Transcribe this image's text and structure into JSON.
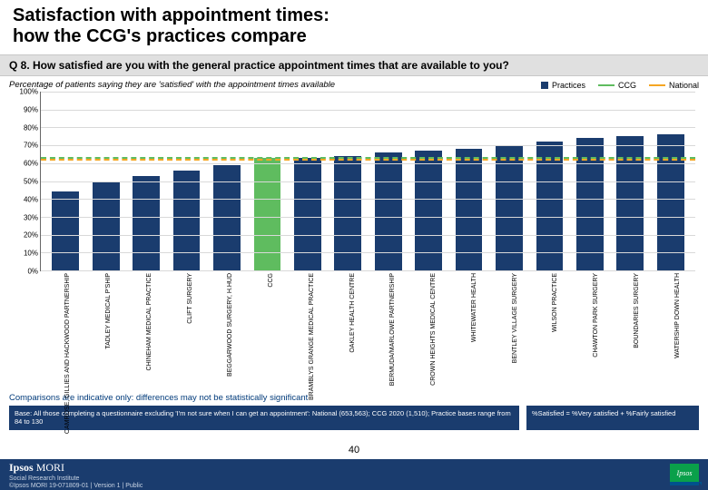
{
  "title_line1": "Satisfaction with appointment times:",
  "title_line2": "how the CCG's practices compare",
  "question": "Q 8. How satisfied are you with the general practice appointment times that are available to you?",
  "subtitle": "Percentage of patients saying they are 'satisfied' with the appointment times available",
  "legend": {
    "practices": {
      "label": "Practices",
      "color": "#1a3c6e"
    },
    "ccg": {
      "label": "CCG",
      "color": "#5fbc5f"
    },
    "national": {
      "label": "National",
      "color": "#f5a623"
    }
  },
  "y_axis": {
    "min": 0,
    "max": 100,
    "step": 10,
    "suffix": "%"
  },
  "reference_lines": {
    "ccg_value": 63,
    "national_value": 63
  },
  "bars": [
    {
      "label": "CAMROSE, GILLIES AND HACKWOOD PARTNERSHIP",
      "value": 44,
      "color": "#1a3c6e"
    },
    {
      "label": "TADLEY MEDICAL P'SHIP",
      "value": 49,
      "color": "#1a3c6e"
    },
    {
      "label": "CHINEHAM MEDICAL PRACTICE",
      "value": 53,
      "color": "#1a3c6e"
    },
    {
      "label": "CLIFT SURGERY",
      "value": 56,
      "color": "#1a3c6e"
    },
    {
      "label": "BEGGARWOOD SURGERY, H.HUD",
      "value": 59,
      "color": "#1a3c6e"
    },
    {
      "label": "CCG",
      "value": 63,
      "color": "#5fbc5f"
    },
    {
      "label": "BRAMBLYS GRANGE MEDICAL PRACTICE",
      "value": 63,
      "color": "#1a3c6e"
    },
    {
      "label": "OAKLEY HEALTH CENTRE",
      "value": 64,
      "color": "#1a3c6e"
    },
    {
      "label": "BERMUDA/MARLOWE PARTNERSHIP",
      "value": 66,
      "color": "#1a3c6e"
    },
    {
      "label": "CROWN HEIGHTS MEDICAL CENTRE",
      "value": 67,
      "color": "#1a3c6e"
    },
    {
      "label": "WHITEWATER HEALTH",
      "value": 68,
      "color": "#1a3c6e"
    },
    {
      "label": "BENTLEY VILLAGE SURGERY",
      "value": 70,
      "color": "#1a3c6e"
    },
    {
      "label": "WILSON PRACTICE",
      "value": 72,
      "color": "#1a3c6e"
    },
    {
      "label": "CHAWTON PARK SURGERY",
      "value": 74,
      "color": "#1a3c6e"
    },
    {
      "label": "BOUNDARIES SURGERY",
      "value": 75,
      "color": "#1a3c6e"
    },
    {
      "label": "WATERSHIP DOWN HEALTH",
      "value": 76,
      "color": "#1a3c6e"
    }
  ],
  "comparison_note": "Comparisons are indicative only: differences may not be statistically significant",
  "base_text": "Base: All those completing a questionnaire excluding 'I'm not sure when I can get an appointment': National (653,563); CCG 2020 (1,510); Practice bases range from 84 to 130",
  "definition_text": "%Satisfied = %Very satisfied + %Fairly satisfied",
  "page_number": "40",
  "footer": {
    "brand_bold": "Ipsos",
    "brand_light": " MORI",
    "institute": "Social Research Institute",
    "copyright": "©Ipsos MORI    19-071809-01 | Version 1 | Public"
  },
  "logo_text": "Ipsos",
  "css": {
    "title_fontsize": 20,
    "question_fontsize": 12,
    "axis_fontsize": 8,
    "xlabel_fontsize": 7,
    "background": "#ffffff",
    "gray_band": "#e0e0e0",
    "navy": "#1a3c6e",
    "grid": "#d9d9d9"
  }
}
